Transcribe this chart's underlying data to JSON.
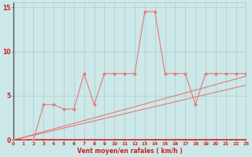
{
  "title": "",
  "xlabel": "Vent moyen/en rafales ( km/h )",
  "ylabel": "",
  "bg_color": "#cce8e8",
  "grid_color": "#aacccc",
  "line_color": "#e87878",
  "x_ticks": [
    0,
    1,
    2,
    3,
    4,
    5,
    6,
    7,
    8,
    9,
    10,
    11,
    12,
    13,
    14,
    15,
    16,
    17,
    18,
    19,
    20,
    21,
    22,
    23
  ],
  "y_ticks": [
    0,
    5,
    10,
    15
  ],
  "xlim": [
    0,
    23
  ],
  "ylim": [
    0,
    15.5
  ],
  "line1_x": [
    0,
    1,
    2,
    3,
    4,
    5,
    6,
    7,
    8,
    9,
    10,
    11,
    12,
    13,
    14,
    15,
    16,
    17,
    18,
    19,
    20,
    21,
    22,
    23
  ],
  "line1_y": [
    0,
    0,
    0,
    4.0,
    4.0,
    3.5,
    3.5,
    7.5,
    4.0,
    7.5,
    7.5,
    7.5,
    7.5,
    14.5,
    14.5,
    7.5,
    7.5,
    7.5,
    4.0,
    7.5,
    7.5,
    7.5,
    7.5,
    7.5
  ],
  "line2_x": [
    0,
    23
  ],
  "line2_y": [
    0,
    7.2
  ],
  "line3_x": [
    0,
    23
  ],
  "line3_y": [
    0,
    6.2
  ]
}
